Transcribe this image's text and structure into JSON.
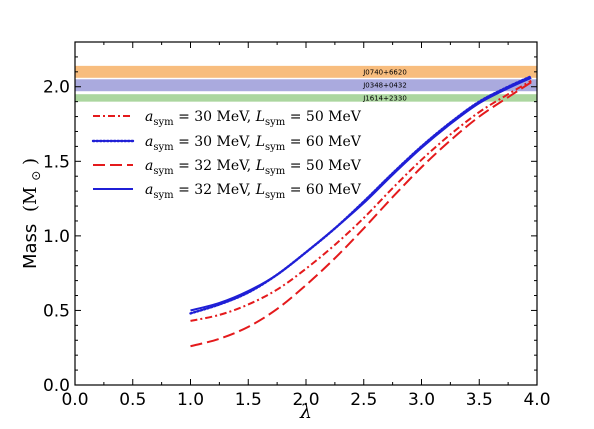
{
  "chart_data": {
    "type": "line",
    "xlabel": "λ",
    "ylabel": "Mass",
    "ylabel_unit": "(M",
    "ylabel_unit_sub": "⊙",
    "ylabel_unit_close": ")",
    "xlim": [
      0.0,
      4.0
    ],
    "ylim": [
      0.0,
      2.3
    ],
    "x_ticks": [
      0.0,
      0.5,
      1.0,
      1.5,
      2.0,
      2.5,
      3.0,
      3.5,
      4.0
    ],
    "x_tick_labels": [
      "0.0",
      "0.5",
      "1.0",
      "1.5",
      "2.0",
      "2.5",
      "3.0",
      "3.5",
      "4.0"
    ],
    "y_ticks": [
      0.0,
      0.5,
      1.0,
      1.5,
      2.0
    ],
    "y_tick_labels": [
      "0.0",
      "0.5",
      "1.0",
      "1.5",
      "2.0"
    ],
    "grid": false,
    "legend_placement": "upper-left",
    "bands": [
      {
        "name": "J0740+6620",
        "ymin": 2.06,
        "ymax": 2.14,
        "color": "#f7b267"
      },
      {
        "name": "J0348+0432",
        "ymin": 1.97,
        "ymax": 2.05,
        "color": "#9b9bd8"
      },
      {
        "name": "J1614+2330",
        "ymin": 1.9,
        "ymax": 1.95,
        "color": "#9ccf8e"
      }
    ],
    "series": [
      {
        "a_sym": "30",
        "L_sym": "50",
        "color": "#e41a1c",
        "dash": "dashdot",
        "x": [
          1.0,
          1.25,
          1.5,
          1.75,
          2.0,
          2.25,
          2.5,
          2.75,
          3.0,
          3.25,
          3.5,
          3.75,
          3.95
        ],
        "y": [
          0.43,
          0.47,
          0.54,
          0.64,
          0.78,
          0.94,
          1.12,
          1.32,
          1.51,
          1.68,
          1.83,
          1.95,
          2.04
        ]
      },
      {
        "a_sym": "30",
        "L_sym": "60",
        "color": "#1f1fd6",
        "dash": "dotted",
        "x": [
          1.0,
          1.25,
          1.5,
          1.75,
          2.0,
          2.25,
          2.5,
          2.75,
          3.0,
          3.25,
          3.5,
          3.75,
          3.95
        ],
        "y": [
          0.48,
          0.54,
          0.62,
          0.74,
          0.89,
          1.05,
          1.23,
          1.42,
          1.6,
          1.76,
          1.9,
          2.0,
          2.07
        ]
      },
      {
        "a_sym": "32",
        "L_sym": "50",
        "color": "#e41a1c",
        "dash": "dashed",
        "x": [
          1.0,
          1.25,
          1.5,
          1.75,
          2.0,
          2.25,
          2.5,
          2.75,
          3.0,
          3.25,
          3.5,
          3.75,
          3.95
        ],
        "y": [
          0.26,
          0.31,
          0.39,
          0.51,
          0.67,
          0.85,
          1.05,
          1.26,
          1.46,
          1.64,
          1.8,
          1.93,
          2.03
        ]
      },
      {
        "a_sym": "32",
        "L_sym": "60",
        "color": "#1f1fd6",
        "dash": "solid",
        "x": [
          1.0,
          1.25,
          1.5,
          1.75,
          2.0,
          2.25,
          2.5,
          2.75,
          3.0,
          3.25,
          3.5,
          3.75,
          3.95
        ],
        "y": [
          0.5,
          0.55,
          0.63,
          0.74,
          0.89,
          1.05,
          1.22,
          1.41,
          1.59,
          1.75,
          1.89,
          1.99,
          2.06
        ]
      }
    ]
  }
}
